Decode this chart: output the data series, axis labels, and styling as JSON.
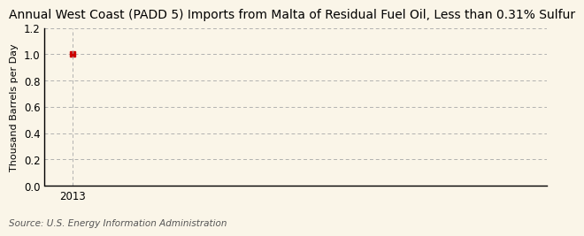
{
  "title": "Annual West Coast (PADD 5) Imports from Malta of Residual Fuel Oil, Less than 0.31% Sulfur",
  "ylabel": "Thousand Barrels per Day",
  "source": "Source: U.S. Energy Information Administration",
  "data_x": [
    2013
  ],
  "data_y": [
    1.0
  ],
  "marker_color": "#cc0000",
  "xlim": [
    2012.5,
    2021.5
  ],
  "ylim": [
    0.0,
    1.2
  ],
  "yticks": [
    0.0,
    0.2,
    0.4,
    0.6,
    0.8,
    1.0,
    1.2
  ],
  "xticks": [
    2013
  ],
  "background_color": "#faf5e8",
  "grid_color": "#aaaaaa",
  "title_fontsize": 10,
  "label_fontsize": 8,
  "tick_fontsize": 8.5,
  "source_fontsize": 7.5
}
